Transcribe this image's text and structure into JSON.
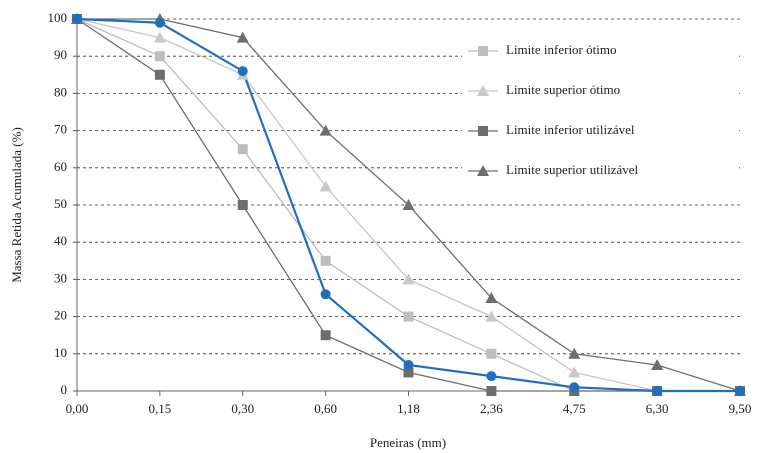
{
  "chart_data": {
    "type": "line",
    "ylabel": "Massa Retida Acumulada (%)",
    "xlabel": "Peneiras (mm)",
    "categories": [
      "0,00",
      "0,15",
      "0,30",
      "0,60",
      "1,18",
      "2,36",
      "4,75",
      "6,30",
      "9,50"
    ],
    "ylim": [
      0,
      100
    ],
    "yticks": [
      0,
      10,
      20,
      30,
      40,
      50,
      60,
      70,
      80,
      90,
      100
    ],
    "grid": true,
    "legend": "right",
    "series": [
      {
        "name": "Limite inferior ótimo",
        "color": "#bdbdbd",
        "marker": "square",
        "values": [
          100,
          90,
          65,
          35,
          20,
          10,
          0,
          0,
          0
        ]
      },
      {
        "name": "Limite superior ótimo",
        "color": "#c8c8c8",
        "marker": "triangle",
        "values": [
          100,
          95,
          85,
          55,
          30,
          20,
          5,
          0,
          0
        ]
      },
      {
        "name": "Limite inferior utilizável",
        "color": "#6e6e6e",
        "marker": "square",
        "values": [
          100,
          85,
          50,
          15,
          5,
          0,
          0,
          0,
          0
        ]
      },
      {
        "name": "Limite superior utilizável",
        "color": "#6e6e6e",
        "marker": "triangle",
        "values": [
          100,
          100,
          95,
          70,
          50,
          25,
          10,
          7,
          0
        ]
      },
      {
        "color": "#1f6fc0",
        "marker": "circle",
        "values": [
          100,
          99,
          86,
          26,
          7,
          4,
          1,
          0,
          0
        ]
      }
    ]
  }
}
